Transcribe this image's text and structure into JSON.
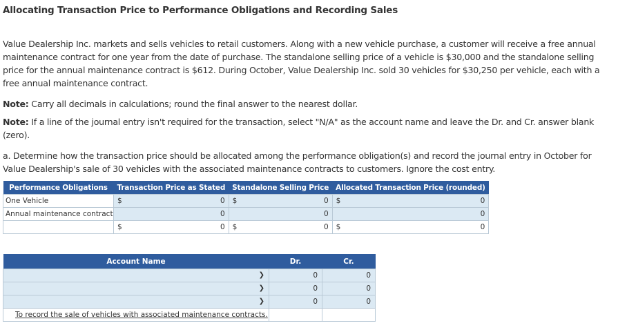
{
  "title": "Allocating Transaction Price to Performance Obligations and Recording Sales",
  "problem_text": "Value Dealership Inc. markets and sells vehicles to retail customers. Along with a new vehicle purchase, a customer will receive a free annual maintenance contract for one year from the date of purchase. The standalone selling price of a vehicle is $30,000 and the standalone selling price for the annual maintenance contract is $612. During October, Value Dealership Inc. sold 30 vehicles for $30,250 per vehicle, each with a free annual maintenance contract.",
  "note1_label": "Note:",
  "note1_text": " Carry all decimals in calculations; round the final answer to the nearest dollar.",
  "note2_label": "Note:",
  "note2_text": " If a line of the journal entry isn't required for the transaction, select \"N/A\" as the account name and leave the Dr. and Cr. answer blank (zero).",
  "part_a": "a. Determine how the transaction price should be allocated among the performance obligation(s) and record the journal entry in October for Value Dealership's sale of 30 vehicles with the associated maintenance contracts to customers. Ignore the cost entry.",
  "perf_table": {
    "headers": [
      "Performance Obligations",
      "Transaction Price as Stated",
      "Standalone Selling Price",
      "Allocated Transaction Price (rounded)"
    ],
    "rows": [
      {
        "label": "One Vehicle",
        "c1_sym": "$",
        "c1": "0",
        "c2_sym": "$",
        "c2": "0",
        "c3_sym": "$",
        "c3": "0"
      },
      {
        "label": "Annual maintenance contract",
        "c1_sym": "",
        "c1": "0",
        "c2_sym": "",
        "c2": "0",
        "c3_sym": "",
        "c3": "0"
      },
      {
        "label": "",
        "c1_sym": "$",
        "c1": "0",
        "c2_sym": "$",
        "c2": "0",
        "c3_sym": "$",
        "c3": "0"
      }
    ]
  },
  "journal": {
    "headers": [
      "Account Name",
      "Dr.",
      "Cr."
    ],
    "rows": [
      {
        "dr": "0",
        "cr": "0"
      },
      {
        "dr": "0",
        "cr": "0"
      },
      {
        "dr": "0",
        "cr": "0"
      }
    ],
    "note": "To record the sale of vehicles with associated maintenance contracts."
  }
}
